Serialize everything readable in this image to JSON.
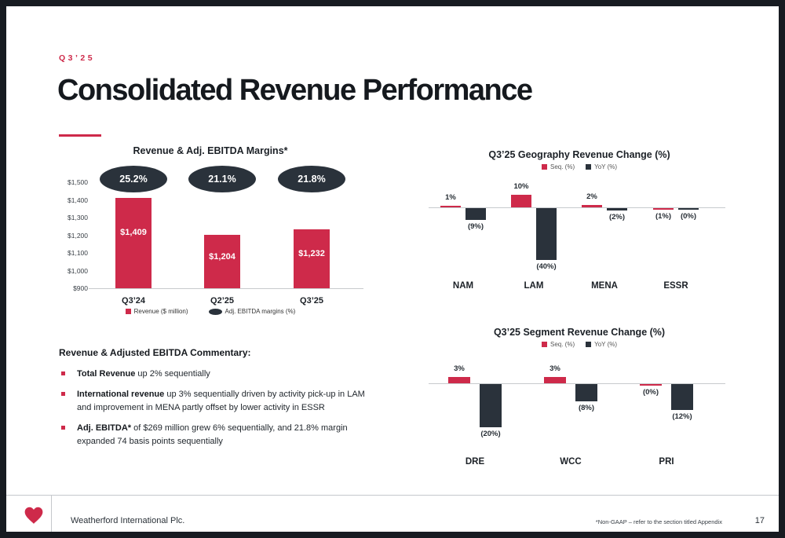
{
  "page": {
    "eyebrow": "Q3’25",
    "title": "Consolidated Revenue Performance"
  },
  "colors": {
    "accent": "#ce2a4a",
    "dark": "#2a323b",
    "ink": "#1b2026"
  },
  "commentary": {
    "heading": "Revenue & Adjusted EBITDA Commentary:",
    "bullets": [
      {
        "lead": "Total Revenue",
        "rest": " up 2% sequentially"
      },
      {
        "lead": "International revenue",
        "rest": " up 3% sequentially driven by activity pick-up in LAM and improvement in MENA partly offset by lower activity in ESSR"
      },
      {
        "lead": "Adj. EBITDA*",
        "rest": " of $269 million grew 6% sequentially, and 21.8% margin expanded 74 basis points sequentially"
      }
    ]
  },
  "footer": {
    "company": "Weatherford International Plc.",
    "footnote": "*Non-GAAP – refer to the section titled Appendix",
    "page_number": "17"
  },
  "chart_data": [
    {
      "type": "bar",
      "title": "Revenue & Adj. EBITDA Margins*",
      "categories": [
        "Q3’24",
        "Q2’25",
        "Q3’25"
      ],
      "series": [
        {
          "name": "Revenue ($ million)",
          "values": [
            1409,
            1204,
            1232
          ],
          "labels": [
            "$1,409",
            "$1,204",
            "$1,232"
          ]
        }
      ],
      "badges": {
        "name": "Adj. EBITDA margins (%)",
        "values": [
          25.2,
          21.1,
          21.8
        ],
        "labels": [
          "25.2%",
          "21.1%",
          "21.8%"
        ]
      },
      "ylim": [
        900,
        1500
      ],
      "yticks": [
        "$1,500",
        "$1,400",
        "$1,300",
        "$1,200",
        "$1,100",
        "$1,000",
        "$900"
      ],
      "legend_position": "bottom",
      "grid": false
    },
    {
      "type": "bar",
      "title": "Q3’25 Geography Revenue Change (%)",
      "categories": [
        "NAM",
        "LAM",
        "MENA",
        "ESSR"
      ],
      "series": [
        {
          "name": "Seq. (%)",
          "values": [
            1,
            10,
            2,
            -1
          ],
          "labels": [
            "1%",
            "10%",
            "2%",
            "(1%)"
          ]
        },
        {
          "name": "YoY (%)",
          "values": [
            -9,
            -40,
            -2,
            0
          ],
          "labels": [
            "(9%)",
            "(40%)",
            "(2%)",
            "(0%)"
          ]
        }
      ],
      "legend_position": "top",
      "grid": false
    },
    {
      "type": "bar",
      "title": "Q3’25 Segment Revenue Change (%)",
      "categories": [
        "DRE",
        "WCC",
        "PRI"
      ],
      "series": [
        {
          "name": "Seq. (%)",
          "values": [
            3,
            3,
            0
          ],
          "labels": [
            "3%",
            "3%",
            "(0%)"
          ]
        },
        {
          "name": "YoY (%)",
          "values": [
            -20,
            -8,
            -12
          ],
          "labels": [
            "(20%)",
            "(8%)",
            "(12%)"
          ]
        }
      ],
      "legend_position": "top",
      "grid": false
    }
  ]
}
